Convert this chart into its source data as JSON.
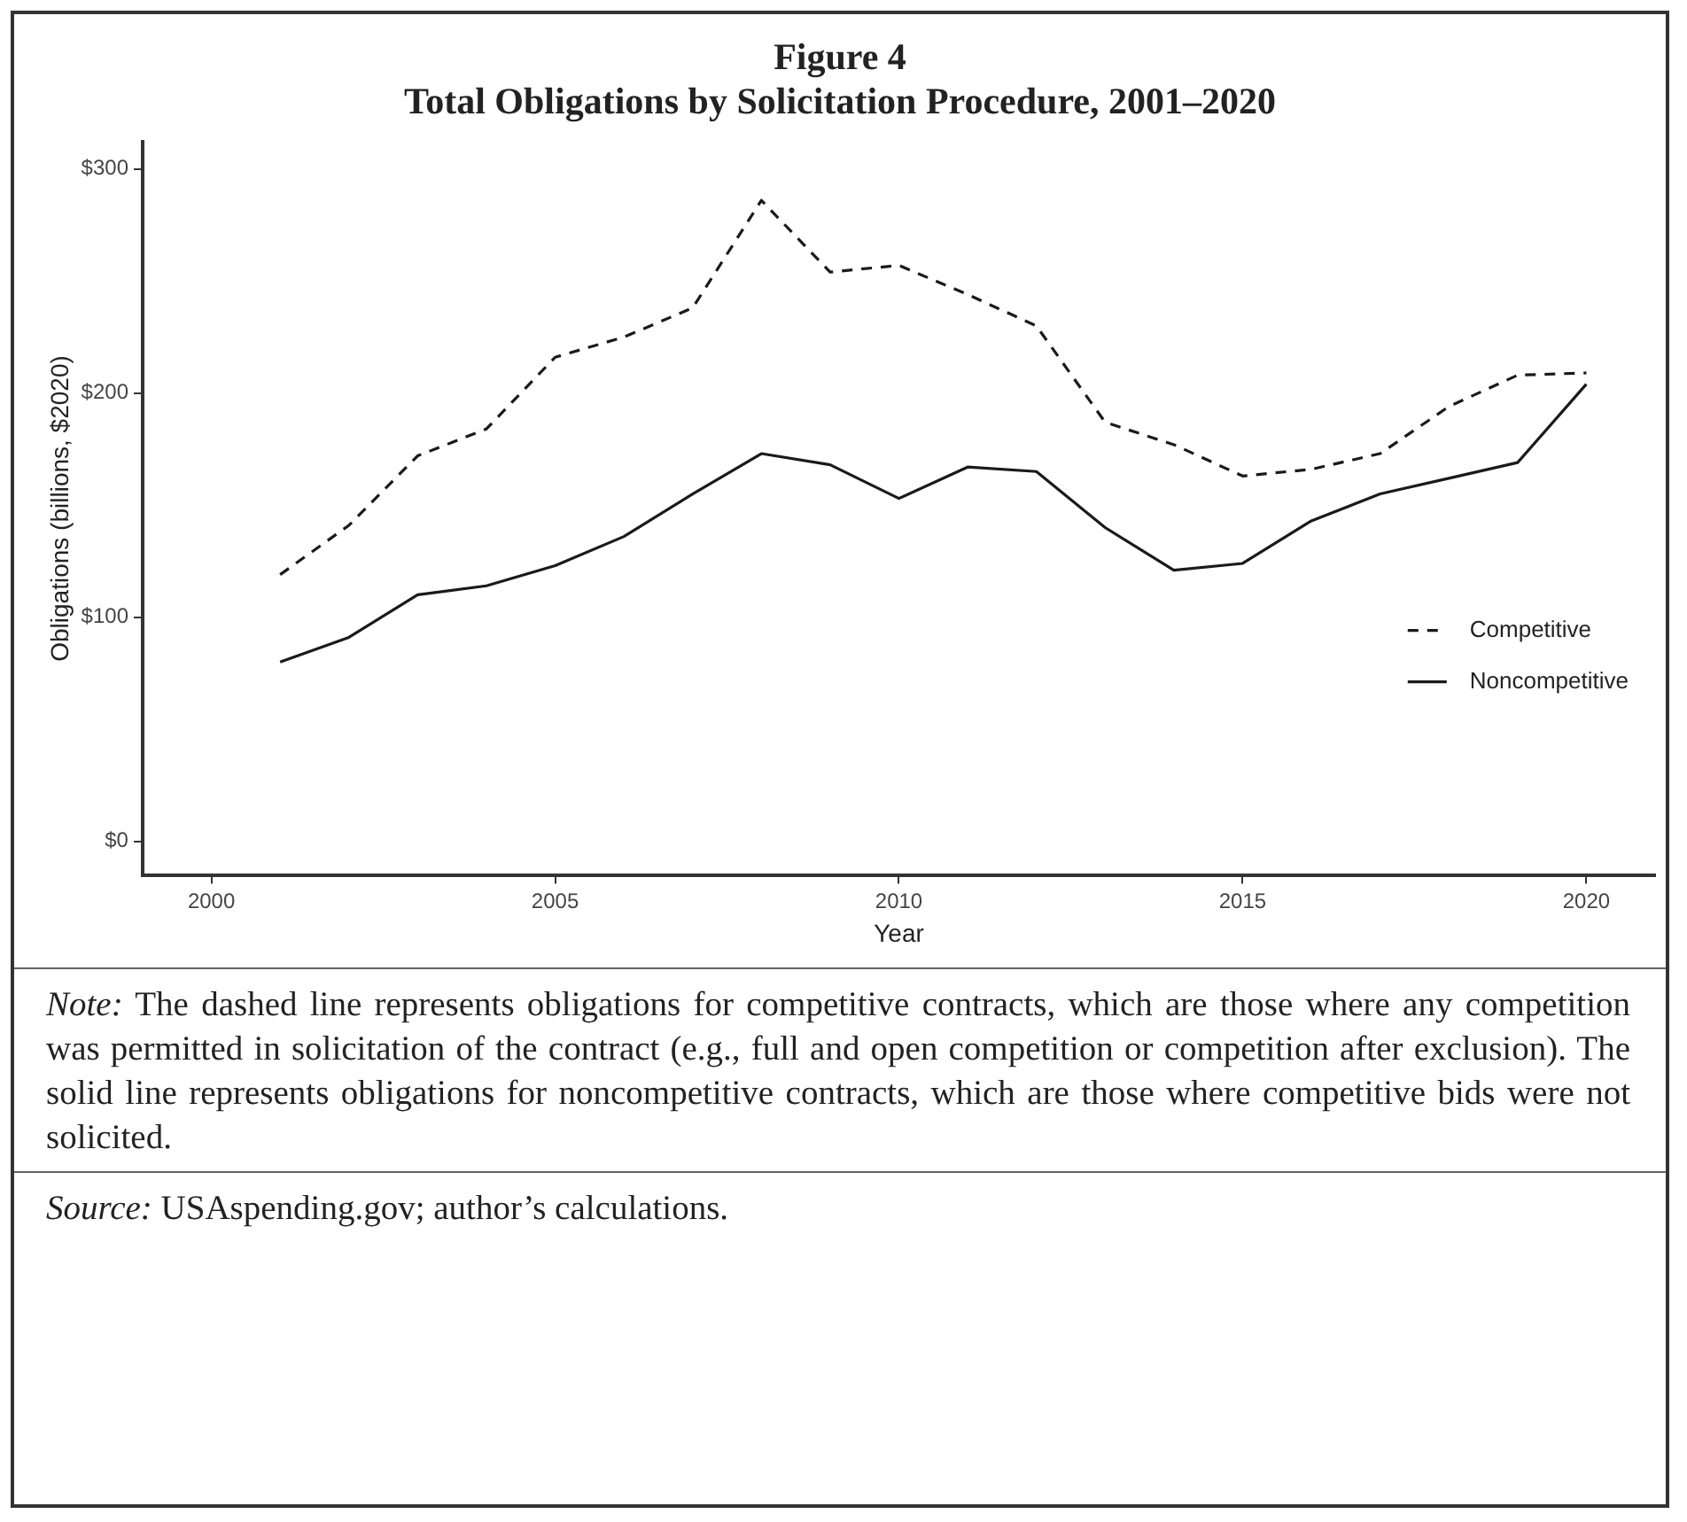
{
  "chart_data": {
    "type": "line",
    "title": "Figure 4",
    "subtitle": "Total Obligations by Solicitation Procedure, 2001–2020",
    "xlabel": "Year",
    "ylabel": "Obligations (billions, $2020)",
    "x": [
      2001,
      2002,
      2003,
      2004,
      2005,
      2006,
      2007,
      2008,
      2009,
      2010,
      2011,
      2012,
      2013,
      2014,
      2015,
      2016,
      2017,
      2018,
      2019,
      2020
    ],
    "series": [
      {
        "name": "Competitive",
        "color": "#1a1a1a",
        "line_style": "dashed",
        "values": [
          119,
          141,
          172,
          184,
          216,
          225,
          238,
          286,
          254,
          257,
          244,
          230,
          187,
          177,
          163,
          166,
          173,
          194,
          208,
          209
        ]
      },
      {
        "name": "Noncompetitive",
        "color": "#1a1a1a",
        "line_style": "solid",
        "values": [
          80,
          91,
          110,
          114,
          123,
          136,
          155,
          173,
          168,
          153,
          167,
          165,
          140,
          121,
          124,
          143,
          155,
          162,
          169,
          204
        ]
      }
    ],
    "xlim": [
      1999,
      2021
    ],
    "xticks": [
      2000,
      2005,
      2010,
      2015,
      2020
    ],
    "ylim": [
      -15,
      312
    ],
    "yticks": [
      {
        "value": 0,
        "label": "$0"
      },
      {
        "value": 100,
        "label": "$100"
      },
      {
        "value": 200,
        "label": "$200"
      },
      {
        "value": 300,
        "label": "$300"
      }
    ],
    "grid": false,
    "legend": "bottom right",
    "marker": "none",
    "annotations": [
      "Note: The dashed line represents obligations for competitive contracts, which are those where any competition was permitted in solicitation of the contract (e.g., full and open competition or competition after exclusion). The solid line represents obligations for noncompetitive contracts, which are those where competitive bids were not solicited.",
      "Source: USAspending.gov; author’s calculations."
    ]
  }
}
